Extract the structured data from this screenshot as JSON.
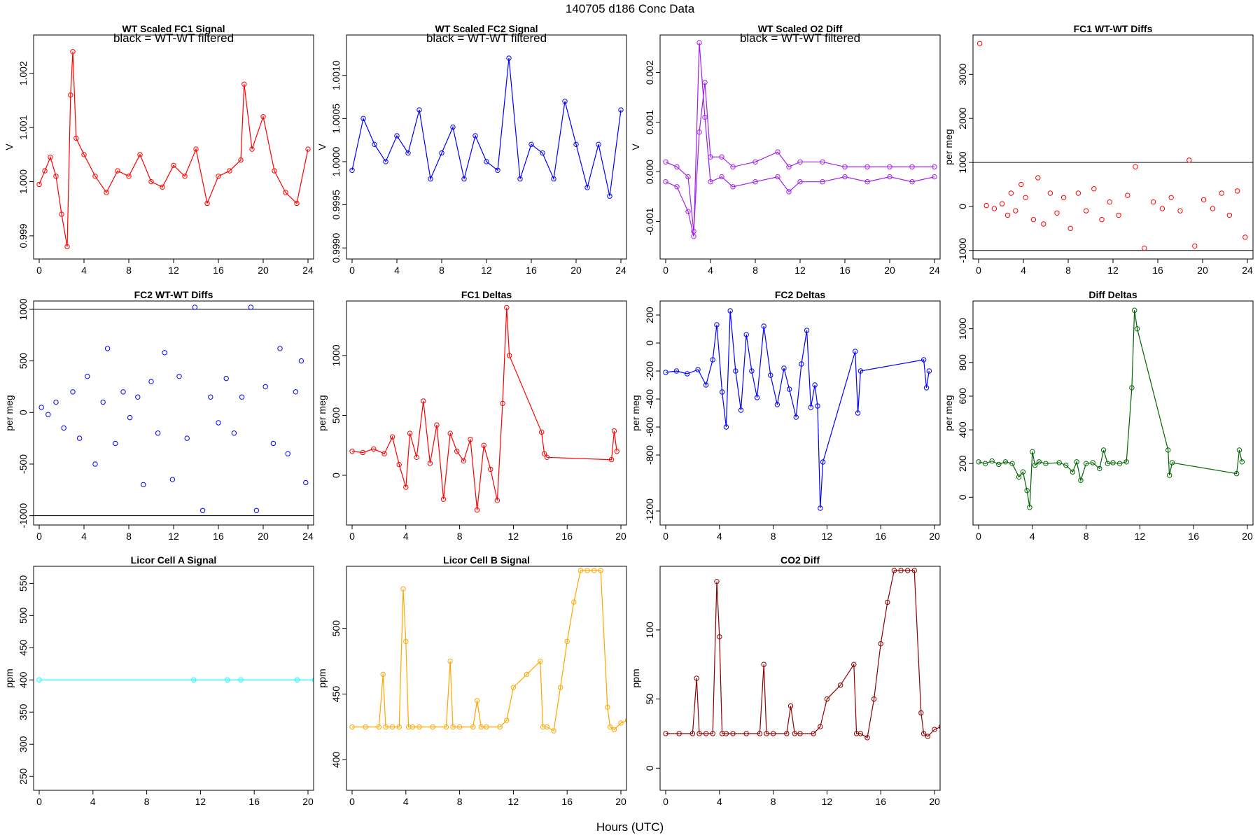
{
  "header": {
    "title": "140705    d186    Conc Data"
  },
  "footer": {
    "xlabel": "Hours (UTC)"
  },
  "chart_data": [
    {
      "type": "line",
      "title": "WT Scaled FC1 Signal",
      "subtitle": "black = WT-WT filtered",
      "ylabel": "V",
      "xlim": [
        0,
        24
      ],
      "ylim": [
        0.99865,
        1.00263
      ],
      "xticks": [
        0,
        4,
        8,
        12,
        16,
        20,
        24
      ],
      "yticks": [
        0.999,
        1.0,
        1.001,
        1.002
      ],
      "yticklabels": [
        "0.999",
        "1.000",
        "1.001",
        "1.002"
      ],
      "color": "#ff0000",
      "grid": false,
      "x": [
        0,
        0.5,
        1,
        1.5,
        2,
        2.5,
        2.8,
        3,
        3.3,
        4,
        5,
        6,
        7,
        8,
        9,
        10,
        11,
        12,
        13,
        14,
        15,
        16,
        17,
        18,
        18.3,
        19,
        20,
        21,
        22,
        23,
        24
      ],
      "y": [
        0.99995,
        1.0002,
        1.00045,
        1.0001,
        0.9994,
        0.9988,
        1.0016,
        1.0024,
        1.0008,
        1.0005,
        1.0001,
        0.9998,
        1.0002,
        1.0001,
        1.0005,
        1.0,
        0.9999,
        1.0003,
        1.0001,
        1.0006,
        0.9996,
        1.0001,
        1.0002,
        1.0004,
        1.0018,
        1.0006,
        1.0012,
        1.0002,
        0.9998,
        0.9996,
        1.0006
      ]
    },
    {
      "type": "line",
      "title": "WT Scaled FC2 Signal",
      "subtitle": "black = WT-WT filtered",
      "ylabel": "V",
      "xlim": [
        0,
        24
      ],
      "ylim": [
        0.99892,
        1.00142
      ],
      "xticks": [
        0,
        4,
        8,
        12,
        16,
        20,
        24
      ],
      "yticks": [
        0.999,
        0.9995,
        1.0,
        1.0005,
        1.001
      ],
      "yticklabels": [
        "0.9990",
        "0.9995",
        "1.0000",
        "1.0005",
        "1.0010"
      ],
      "color": "#0000ff",
      "grid": false,
      "x": [
        0,
        1,
        2,
        3,
        4,
        5,
        6,
        7,
        8,
        9,
        10,
        11,
        12,
        13,
        14,
        15,
        16,
        17,
        18,
        19,
        20,
        21,
        22,
        23,
        24
      ],
      "y": [
        0.9999,
        1.0005,
        1.0002,
        1.0,
        1.0003,
        1.0001,
        1.0006,
        0.9998,
        1.0001,
        1.0004,
        0.9998,
        1.0003,
        1.0,
        0.9999,
        1.0012,
        0.9998,
        1.0002,
        1.0001,
        0.9998,
        1.0007,
        1.0002,
        0.9997,
        1.0002,
        0.9996,
        1.0006
      ]
    },
    {
      "type": "line",
      "title": "WT Scaled O2 Diff",
      "subtitle": "black = WT-WT filtered",
      "ylabel": "V",
      "xlim": [
        0,
        24
      ],
      "ylim": [
        -0.00167,
        0.00267
      ],
      "xticks": [
        0,
        4,
        8,
        12,
        16,
        20,
        24
      ],
      "yticks": [
        -0.001,
        0.0,
        0.001,
        0.002
      ],
      "yticklabels": [
        "-0.001",
        "0.000",
        "0.001",
        "0.002"
      ],
      "color": "#a020f0",
      "grid": false,
      "series": [
        {
          "x": [
            0,
            1,
            2,
            2.5,
            3,
            3.5,
            4,
            5,
            6,
            8,
            10,
            11,
            12,
            14,
            16,
            18,
            20,
            22,
            24
          ],
          "y": [
            0.0002,
            0.0001,
            -0.0001,
            -0.0012,
            0.0008,
            0.0018,
            0.0003,
            0.0003,
            0.0001,
            0.0002,
            0.0004,
            0.0001,
            0.0002,
            0.0002,
            0.0001,
            0.0001,
            0.0001,
            0.0001,
            0.0001
          ]
        },
        {
          "x": [
            0,
            1,
            2,
            2.5,
            3,
            3.5,
            4,
            5,
            6,
            8,
            10,
            11,
            12,
            14,
            16,
            18,
            20,
            22,
            24
          ],
          "y": [
            -0.0002,
            -0.0003,
            -0.0008,
            -0.0013,
            0.0026,
            0.0011,
            -0.0002,
            -0.0001,
            -0.0003,
            -0.0002,
            -0.0001,
            -0.0004,
            -0.0002,
            -0.0002,
            -0.0001,
            -0.0002,
            -0.0001,
            -0.0002,
            -0.0001
          ]
        }
      ]
    },
    {
      "type": "scatter",
      "title": "FC1 WT-WT Diffs",
      "ylabel": "per meg",
      "xlim": [
        0,
        24
      ],
      "ylim": [
        -1100,
        3800
      ],
      "xticks": [
        0,
        4,
        8,
        12,
        16,
        20,
        24
      ],
      "yticks": [
        -1000,
        0,
        1000,
        2000,
        3000
      ],
      "yticklabels": [
        "-1000",
        "0",
        "1000",
        "2000",
        "3000"
      ],
      "hlines": [
        1000,
        -1000
      ],
      "color": "#ff0000",
      "grid": false,
      "x": [
        0.1,
        0.7,
        1.4,
        2.1,
        2.6,
        2.9,
        3.3,
        3.8,
        4.2,
        4.9,
        5.3,
        5.8,
        6.4,
        7,
        7.6,
        8.2,
        8.9,
        9.6,
        10.3,
        11,
        11.7,
        12.5,
        13.3,
        14,
        14.8,
        15.6,
        16.4,
        17.2,
        18,
        18.8,
        19.3,
        20.1,
        20.9,
        21.7,
        22.4,
        23.1,
        23.8
      ],
      "y": [
        3700,
        20,
        -50,
        60,
        -200,
        300,
        -100,
        500,
        200,
        -300,
        650,
        -400,
        300,
        -150,
        200,
        -500,
        300,
        -100,
        400,
        -300,
        100,
        -200,
        250,
        900,
        -950,
        100,
        -50,
        200,
        -100,
        1050,
        -900,
        150,
        -50,
        300,
        -200,
        350,
        -700
      ]
    },
    {
      "type": "scatter",
      "title": "FC2 WT-WT Diffs",
      "ylabel": "per meg",
      "xlim": [
        0,
        24
      ],
      "ylim": [
        -1050,
        1040
      ],
      "xticks": [
        0,
        4,
        8,
        12,
        16,
        20,
        24
      ],
      "yticks": [
        -1000,
        -500,
        0,
        500,
        1000
      ],
      "yticklabels": [
        "-1000",
        "-500",
        "0",
        "500",
        "1000"
      ],
      "hlines": [
        1000,
        -1000
      ],
      "color": "#0000ff",
      "grid": false,
      "x": [
        0.2,
        0.8,
        1.5,
        2.2,
        3,
        3.6,
        4.3,
        5,
        5.7,
        6.1,
        6.8,
        7.5,
        8.1,
        8.8,
        9.3,
        10,
        10.6,
        11.2,
        11.9,
        12.5,
        13.2,
        13.9,
        14.6,
        15.3,
        16,
        16.7,
        17.4,
        18.1,
        18.9,
        19.4,
        20.2,
        20.9,
        21.5,
        22.2,
        22.9,
        23.4,
        23.8
      ],
      "y": [
        50,
        -20,
        100,
        -150,
        200,
        -250,
        350,
        -500,
        100,
        620,
        -300,
        200,
        -50,
        150,
        -700,
        300,
        -200,
        580,
        -650,
        350,
        -250,
        1020,
        -950,
        150,
        -100,
        330,
        -200,
        150,
        1020,
        -950,
        250,
        -300,
        620,
        -400,
        200,
        500,
        -680
      ]
    },
    {
      "type": "line",
      "title": "FC1 Deltas",
      "ylabel": "per meg",
      "xlim": [
        0,
        20
      ],
      "ylim": [
        -380,
        1420
      ],
      "xticks": [
        0,
        4,
        8,
        12,
        16,
        20
      ],
      "yticks": [
        0,
        500,
        1000
      ],
      "yticklabels": [
        "0",
        "500",
        "1000"
      ],
      "color": "#ff0000",
      "grid": false,
      "x": [
        0,
        0.8,
        1.6,
        2.4,
        3,
        3.5,
        4,
        4.3,
        4.8,
        5.3,
        5.8,
        6.3,
        6.8,
        7.3,
        7.8,
        8.3,
        8.8,
        9.3,
        9.8,
        10.3,
        10.8,
        11.2,
        11.5,
        11.7,
        14.1,
        14.3,
        14.5,
        19.3,
        19.5,
        19.7
      ],
      "y": [
        200,
        190,
        220,
        180,
        320,
        90,
        -100,
        350,
        150,
        620,
        100,
        420,
        -200,
        350,
        200,
        120,
        300,
        -290,
        250,
        50,
        -210,
        600,
        1400,
        1000,
        360,
        180,
        150,
        130,
        370,
        200
      ]
    },
    {
      "type": "line",
      "title": "FC2 Deltas",
      "ylabel": "per meg",
      "xlim": [
        0,
        20
      ],
      "ylim": [
        -1270,
        270
      ],
      "xticks": [
        0,
        4,
        8,
        12,
        16,
        20
      ],
      "yticks": [
        -1200,
        -800,
        -600,
        -400,
        -200,
        0,
        200
      ],
      "yticklabels": [
        "-1200",
        "-800",
        "-600",
        "-400",
        "-200",
        "0",
        "200"
      ],
      "color": "#0000ff",
      "grid": false,
      "x": [
        0,
        0.8,
        1.6,
        2.4,
        3,
        3.5,
        3.8,
        4.2,
        4.5,
        4.8,
        5.2,
        5.6,
        6,
        6.4,
        6.8,
        7.3,
        7.8,
        8.3,
        8.8,
        9.2,
        9.7,
        10.1,
        10.5,
        10.8,
        11.1,
        11.3,
        11.5,
        11.7,
        14.1,
        14.3,
        14.5,
        19.2,
        19.4,
        19.6
      ],
      "y": [
        -210,
        -200,
        -220,
        -190,
        -300,
        -120,
        130,
        -350,
        -600,
        230,
        -200,
        -480,
        60,
        -200,
        -390,
        120,
        -230,
        -440,
        -180,
        -330,
        -530,
        -150,
        90,
        -460,
        -300,
        -450,
        -1180,
        -850,
        -60,
        -500,
        -200,
        -120,
        -320,
        -200
      ]
    },
    {
      "type": "line",
      "title": "Diff Deltas",
      "ylabel": "per meg",
      "xlim": [
        0,
        20
      ],
      "ylim": [
        -140,
        1140
      ],
      "xticks": [
        0,
        4,
        8,
        12,
        16,
        20
      ],
      "yticks": [
        0,
        200,
        400,
        600,
        800,
        1000
      ],
      "yticklabels": [
        "0",
        "200",
        "400",
        "600",
        "800",
        "1000"
      ],
      "color": "#006400",
      "grid": false,
      "x": [
        0,
        0.5,
        1,
        1.5,
        2,
        2.5,
        3,
        3.3,
        3.6,
        3.8,
        4,
        4.2,
        4.5,
        5,
        6,
        6.5,
        7,
        7.3,
        7.6,
        8,
        8.5,
        9,
        9.3,
        9.6,
        10,
        10.5,
        11,
        11.4,
        11.6,
        11.8,
        14.1,
        14.2,
        14.4,
        19.2,
        19.4,
        19.6
      ],
      "y": [
        210,
        200,
        215,
        195,
        210,
        200,
        120,
        150,
        40,
        -60,
        270,
        190,
        210,
        200,
        205,
        190,
        150,
        210,
        100,
        200,
        205,
        170,
        280,
        200,
        205,
        200,
        210,
        650,
        1110,
        1000,
        280,
        130,
        205,
        140,
        280,
        210
      ]
    },
    {
      "type": "line",
      "title": "Licor Cell A Signal",
      "ylabel": "ppm",
      "xlim": [
        0,
        20
      ],
      "ylim": [
        235,
        570
      ],
      "xticks": [
        0,
        4,
        8,
        12,
        16,
        20
      ],
      "yticks": [
        250,
        300,
        350,
        400,
        450,
        500,
        550
      ],
      "yticklabels": [
        "250",
        "300",
        "350",
        "400",
        "450",
        "500",
        "550"
      ],
      "color": "#00ffff",
      "grid": false,
      "x": [
        0,
        11.5,
        14,
        15,
        19.2,
        20.5
      ],
      "y": [
        400,
        400,
        400,
        400,
        400,
        400
      ]
    },
    {
      "type": "line",
      "title": "Licor Cell B Signal",
      "ylabel": "ppm",
      "xlim": [
        0,
        20
      ],
      "ylim": [
        380,
        544
      ],
      "xticks": [
        0,
        4,
        8,
        12,
        16,
        20
      ],
      "yticks": [
        400,
        450,
        500
      ],
      "yticklabels": [
        "400",
        "450",
        "500"
      ],
      "color": "#ffa500",
      "grid": false,
      "x": [
        0,
        1,
        2,
        2.3,
        2.5,
        3,
        3.5,
        3.8,
        4,
        4.2,
        4.5,
        5,
        6,
        7,
        7.3,
        7.5,
        8,
        9,
        9.3,
        9.6,
        10,
        11,
        11.5,
        12,
        13,
        14,
        14.2,
        14.5,
        15,
        15.5,
        16,
        16.5,
        17,
        17.5,
        18,
        18.5,
        19,
        19.2,
        19.5,
        20,
        20.5
      ],
      "y": [
        425,
        425,
        425,
        465,
        425,
        425,
        425,
        530,
        490,
        425,
        425,
        425,
        425,
        425,
        475,
        425,
        425,
        425,
        445,
        425,
        425,
        425,
        430,
        455,
        465,
        475,
        425,
        425,
        422,
        455,
        490,
        520,
        544,
        544,
        544,
        544,
        440,
        425,
        423,
        428,
        430
      ]
    },
    {
      "type": "line",
      "title": "CO2 Diff",
      "ylabel": "ppm",
      "xlim": [
        0,
        20
      ],
      "ylim": [
        -13,
        143
      ],
      "xticks": [
        0,
        4,
        8,
        12,
        16,
        20
      ],
      "yticks": [
        0,
        50,
        100
      ],
      "yticklabels": [
        "0",
        "50",
        "100"
      ],
      "color": "#8b0000",
      "grid": false,
      "x": [
        0,
        1,
        2,
        2.3,
        2.5,
        3,
        3.5,
        3.8,
        4,
        4.2,
        4.5,
        5,
        6,
        7,
        7.3,
        7.5,
        8,
        9,
        9.3,
        9.6,
        10,
        11,
        11.5,
        12,
        13,
        14,
        14.2,
        14.5,
        15,
        15.5,
        16,
        16.5,
        17,
        17.5,
        18,
        18.5,
        19,
        19.2,
        19.5,
        20,
        20.5
      ],
      "y": [
        25,
        25,
        25,
        65,
        25,
        25,
        25,
        135,
        95,
        25,
        25,
        25,
        25,
        25,
        75,
        25,
        25,
        25,
        45,
        25,
        25,
        25,
        30,
        50,
        60,
        75,
        25,
        25,
        22,
        50,
        90,
        120,
        143,
        143,
        143,
        143,
        40,
        25,
        23,
        28,
        30
      ]
    }
  ]
}
